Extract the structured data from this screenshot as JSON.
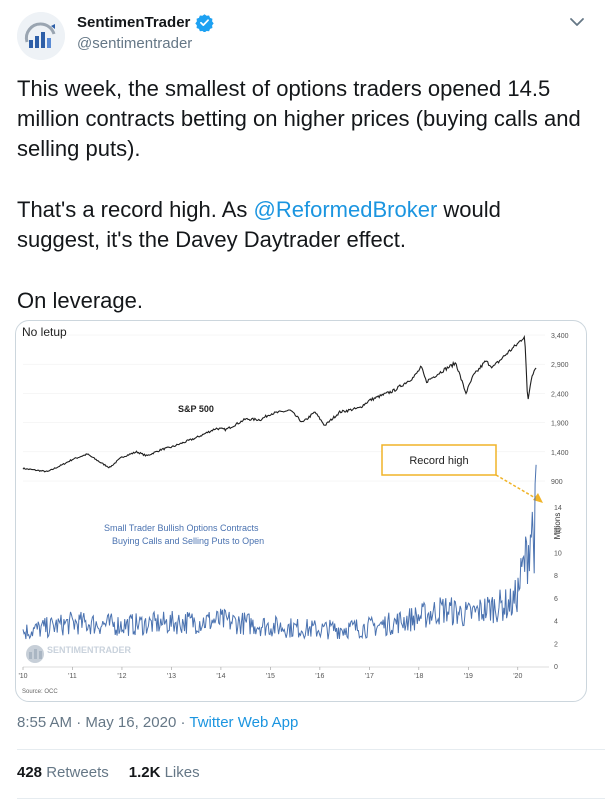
{
  "author": {
    "name": "SentimenTrader",
    "handle": "@sentimentrader"
  },
  "tweet": {
    "para1": "This week, the smallest of options traders opened 14.5 million contracts betting on higher prices (buying calls and selling puts).",
    "para2_before": "That's a record high. As ",
    "para2_mention": "@ReformedBroker",
    "para2_after": " would suggest, it's the Davey Daytrader effect.",
    "para3": "On leverage."
  },
  "meta": {
    "time": "8:55 AM",
    "sep1": "·",
    "date": "May 16, 2020",
    "sep2": "·",
    "app": "Twitter Web App"
  },
  "stats": {
    "retweets_count": "428",
    "retweets_label": "Retweets",
    "likes_count": "1.2K",
    "likes_label": "Likes"
  },
  "colors": {
    "link": "#1b95e0",
    "sp_line": "#1f1f1f",
    "options_line": "#4a72b0",
    "callout": "#f0b429"
  },
  "chart_data": {
    "type": "line",
    "title": "No letup",
    "source": "Source: OCC",
    "watermark": "SENTIMENTRADER",
    "x_ticks": [
      "'10",
      "'11",
      "'12",
      "'13",
      "'14",
      "'15",
      "'16",
      "'17",
      "'18",
      "'19",
      "'20"
    ],
    "upper": {
      "series_label": "S&P 500",
      "y_ticks": [
        "3,400",
        "2,900",
        "2,400",
        "1,900",
        "1,400",
        "900"
      ],
      "ylim": [
        900,
        3400
      ],
      "anchors": [
        [
          2010.0,
          1115
        ],
        [
          2010.3,
          1080
        ],
        [
          2010.5,
          1060
        ],
        [
          2010.8,
          1180
        ],
        [
          2011.0,
          1270
        ],
        [
          2011.3,
          1360
        ],
        [
          2011.6,
          1200
        ],
        [
          2011.75,
          1130
        ],
        [
          2012.0,
          1310
        ],
        [
          2012.3,
          1400
        ],
        [
          2012.5,
          1330
        ],
        [
          2012.8,
          1440
        ],
        [
          2013.0,
          1480
        ],
        [
          2013.5,
          1640
        ],
        [
          2013.9,
          1800
        ],
        [
          2014.1,
          1780
        ],
        [
          2014.5,
          1960
        ],
        [
          2014.8,
          1950
        ],
        [
          2015.0,
          2050
        ],
        [
          2015.4,
          2110
        ],
        [
          2015.65,
          1900
        ],
        [
          2015.9,
          2080
        ],
        [
          2016.1,
          1850
        ],
        [
          2016.4,
          2080
        ],
        [
          2016.8,
          2150
        ],
        [
          2017.0,
          2280
        ],
        [
          2017.5,
          2450
        ],
        [
          2017.9,
          2680
        ],
        [
          2018.05,
          2850
        ],
        [
          2018.15,
          2600
        ],
        [
          2018.5,
          2800
        ],
        [
          2018.75,
          2920
        ],
        [
          2018.95,
          2400
        ],
        [
          2019.1,
          2700
        ],
        [
          2019.35,
          2950
        ],
        [
          2019.5,
          2850
        ],
        [
          2019.8,
          3100
        ],
        [
          2020.0,
          3250
        ],
        [
          2020.14,
          3390
        ],
        [
          2020.2,
          2250
        ],
        [
          2020.28,
          2700
        ],
        [
          2020.37,
          2860
        ]
      ]
    },
    "lower": {
      "series_label": "Small Trader Bullish Options Contracts Buying Calls and Selling Puts to Open",
      "axis_title": "Millions",
      "y_ticks": [
        "14",
        "12",
        "10",
        "8",
        "6",
        "4",
        "2",
        "0"
      ],
      "ylim": [
        0,
        14
      ],
      "anchors": [
        [
          2010.0,
          3.0
        ],
        [
          2011.0,
          3.8
        ],
        [
          2012.0,
          3.6
        ],
        [
          2013.0,
          3.8
        ],
        [
          2014.0,
          4.0
        ],
        [
          2015.0,
          3.5
        ],
        [
          2016.0,
          3.2
        ],
        [
          2017.0,
          3.4
        ],
        [
          2017.5,
          3.8
        ],
        [
          2018.0,
          4.3
        ],
        [
          2018.5,
          5.0
        ],
        [
          2019.0,
          4.5
        ],
        [
          2019.5,
          5.2
        ],
        [
          2019.9,
          5.5
        ],
        [
          2020.0,
          6.5
        ],
        [
          2020.1,
          8.5
        ],
        [
          2020.2,
          10.0
        ],
        [
          2020.28,
          12.5
        ],
        [
          2020.33,
          11.0
        ],
        [
          2020.37,
          14.5
        ]
      ],
      "annotation": "Record high"
    }
  }
}
